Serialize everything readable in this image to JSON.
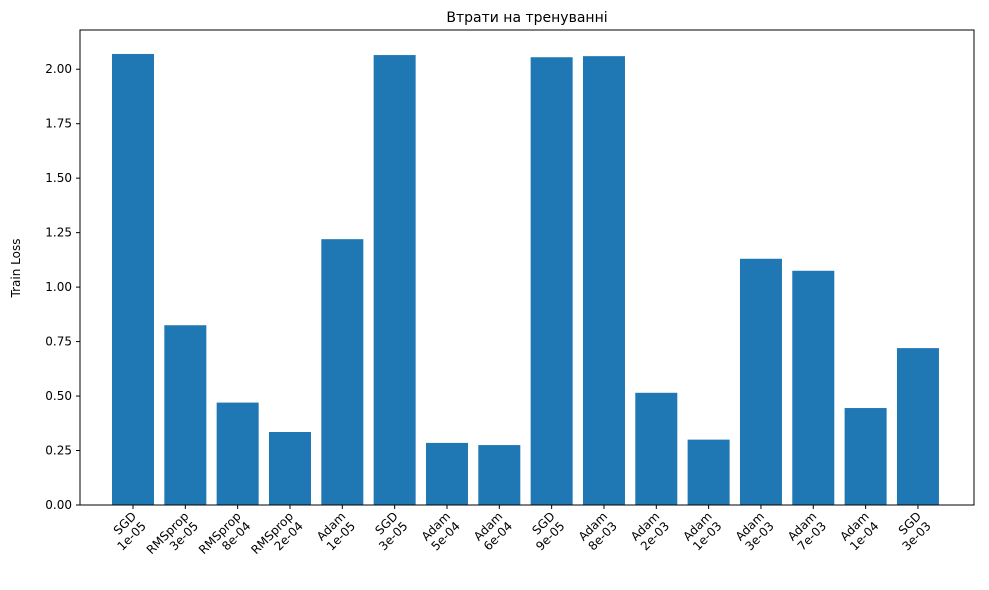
{
  "chart_data": {
    "type": "bar",
    "title": "Втрати на тренуванні",
    "xlabel": "",
    "ylabel": "Train Loss",
    "ylim": [
      0,
      2.18
    ],
    "yticks": [
      "0.00",
      "0.25",
      "0.50",
      "0.75",
      "1.00",
      "1.25",
      "1.50",
      "1.75",
      "2.00"
    ],
    "categories": [
      [
        "SGD",
        "1e-05"
      ],
      [
        "RMSprop",
        "3e-05"
      ],
      [
        "RMSprop",
        "8e-04"
      ],
      [
        "RMSprop",
        "2e-04"
      ],
      [
        "Adam",
        "1e-05"
      ],
      [
        "SGD",
        "3e-05"
      ],
      [
        "Adam",
        "5e-04"
      ],
      [
        "Adam",
        "6e-04"
      ],
      [
        "SGD",
        "9e-05"
      ],
      [
        "Adam",
        "8e-03"
      ],
      [
        "Adam",
        "2e-03"
      ],
      [
        "Adam",
        "1e-03"
      ],
      [
        "Adam",
        "3e-03"
      ],
      [
        "Adam",
        "7e-03"
      ],
      [
        "Adam",
        "1e-04"
      ],
      [
        "SGD",
        "3e-03"
      ]
    ],
    "values": [
      2.07,
      0.825,
      0.47,
      0.335,
      1.22,
      2.065,
      0.285,
      0.275,
      2.055,
      2.06,
      0.515,
      0.3,
      1.13,
      1.075,
      0.445,
      0.72
    ],
    "bar_color": "#1f77b4",
    "grid": false,
    "legend": "none"
  }
}
